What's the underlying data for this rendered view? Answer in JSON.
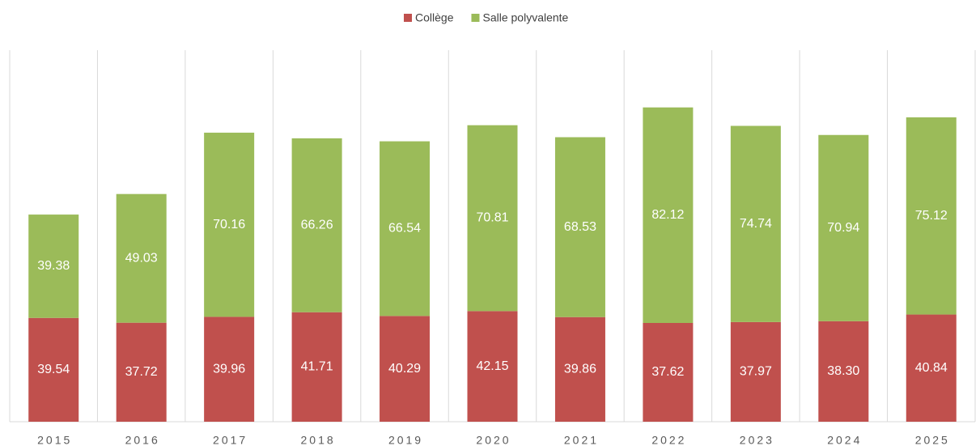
{
  "chart_data": {
    "type": "stacked_bar",
    "categories": [
      "2015",
      "2016",
      "2017",
      "2018",
      "2019",
      "2020",
      "2021",
      "2022",
      "2023",
      "2024",
      "2025"
    ],
    "series": [
      {
        "name": "Collège",
        "color": "#c0504d",
        "values": [
          39.54,
          37.72,
          39.96,
          41.71,
          40.29,
          42.15,
          39.86,
          37.62,
          37.97,
          38.3,
          40.84
        ],
        "value_labels": [
          "39.54",
          "37.72",
          "39.96",
          "41.71",
          "40.29",
          "42.15",
          "39.86",
          "37.62",
          "37.97",
          "38.30",
          "40.84"
        ]
      },
      {
        "name": "Salle polyvalente",
        "color": "#9bbb59",
        "values": [
          39.38,
          49.03,
          70.16,
          66.26,
          66.54,
          70.81,
          68.53,
          82.12,
          74.74,
          70.94,
          75.12
        ]
      }
    ],
    "ylim": [
      0,
      140
    ],
    "legend": "top"
  }
}
